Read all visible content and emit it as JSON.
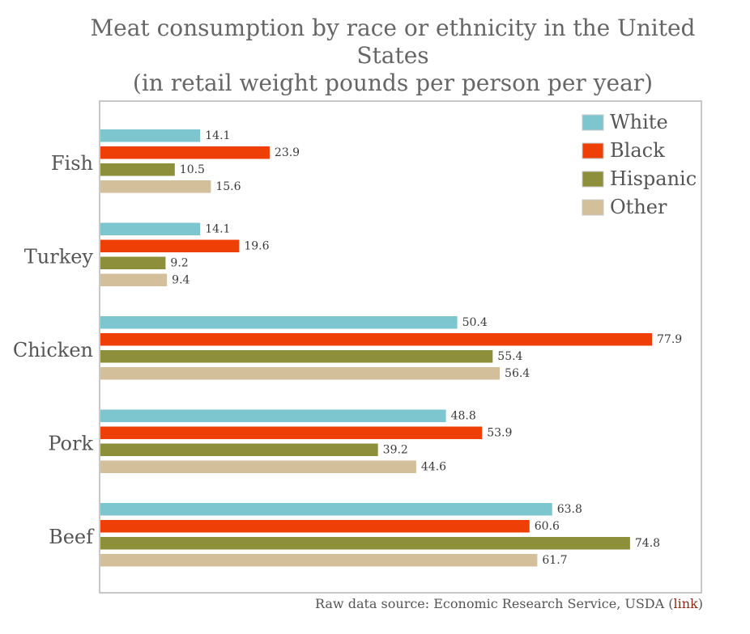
{
  "title_lines": [
    "Meat consumption by race or ethnicity in the United",
    "States",
    "(in retail weight pounds per person per year)"
  ],
  "source": {
    "prefix": "Raw data source: Economic Research Service, USDA (",
    "link": "link",
    "suffix": ")"
  },
  "colors": {
    "White": "#7ec6cf",
    "Black": "#ee3f06",
    "Hispanic": "#8e8f3b",
    "Other": "#d3bf9a"
  },
  "chart_data": {
    "type": "bar",
    "orientation": "horizontal",
    "title": "Meat consumption by race or ethnicity in the United States (in retail weight pounds per person per year)",
    "categories": [
      "Fish",
      "Turkey",
      "Chicken",
      "Pork",
      "Beef"
    ],
    "series": [
      {
        "name": "White",
        "values": [
          14.1,
          14.1,
          50.4,
          48.8,
          63.8
        ]
      },
      {
        "name": "Black",
        "values": [
          23.9,
          19.6,
          77.9,
          53.9,
          60.6
        ]
      },
      {
        "name": "Hispanic",
        "values": [
          10.5,
          9.2,
          55.4,
          39.2,
          74.8
        ]
      },
      {
        "name": "Other",
        "values": [
          15.6,
          9.4,
          56.4,
          44.6,
          61.7
        ]
      }
    ],
    "xlim": [
      0,
      84
    ],
    "grid": false,
    "legend": "top-right",
    "data_labels": true
  }
}
